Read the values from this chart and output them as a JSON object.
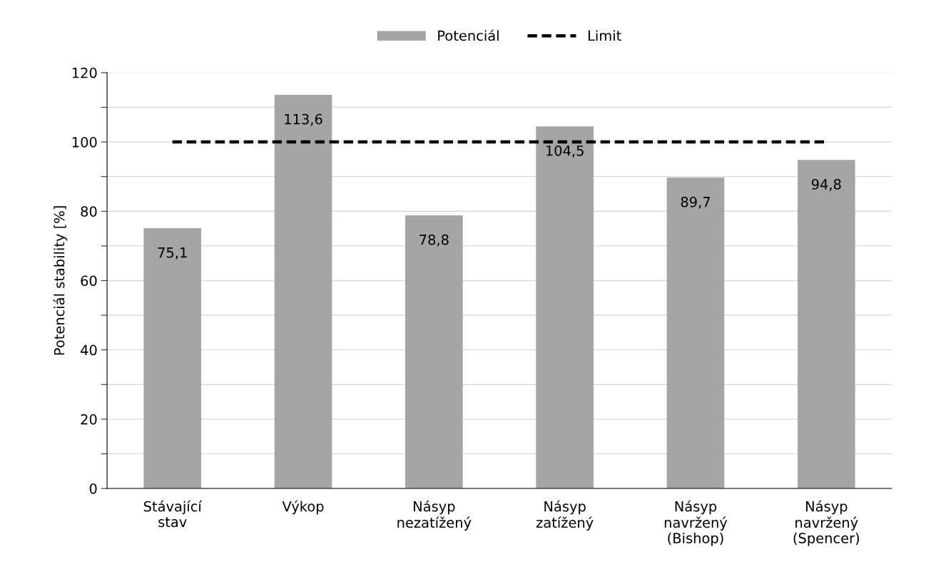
{
  "chart_data": {
    "type": "bar",
    "ylabel": "Potenciál stability [%]",
    "categories": [
      "Stávající\nstav",
      "Výkop",
      "Násyp\nnezatížený",
      "Násyp\nzatížený",
      "Násyp\nnavržený\n(Bishop)",
      "Násyp\nnavržený\n(Spencer)"
    ],
    "series": [
      {
        "name": "Potenciál",
        "color": "#a5a5a5",
        "values": [
          75.1,
          113.6,
          78.8,
          104.5,
          89.7,
          94.8
        ],
        "value_labels": [
          "75,1",
          "113,6",
          "78,8",
          "104,5",
          "89,7",
          "94,8"
        ]
      },
      {
        "name": "Limit",
        "type": "line",
        "color": "#000000",
        "line_style": "dashed",
        "values": [
          100,
          100,
          100,
          100,
          100,
          100
        ]
      }
    ],
    "ylim": [
      0,
      120
    ],
    "yticks": [
      0,
      {
        "value": 10,
        "label": null
      },
      20,
      {
        "value": 30,
        "label": null
      },
      40,
      {
        "value": 50,
        "label": null
      },
      60,
      {
        "value": 70,
        "label": null
      },
      80,
      {
        "value": 90,
        "label": null
      },
      100,
      {
        "value": 110,
        "label": null
      },
      120
    ],
    "grid": "y",
    "legend": "top"
  }
}
